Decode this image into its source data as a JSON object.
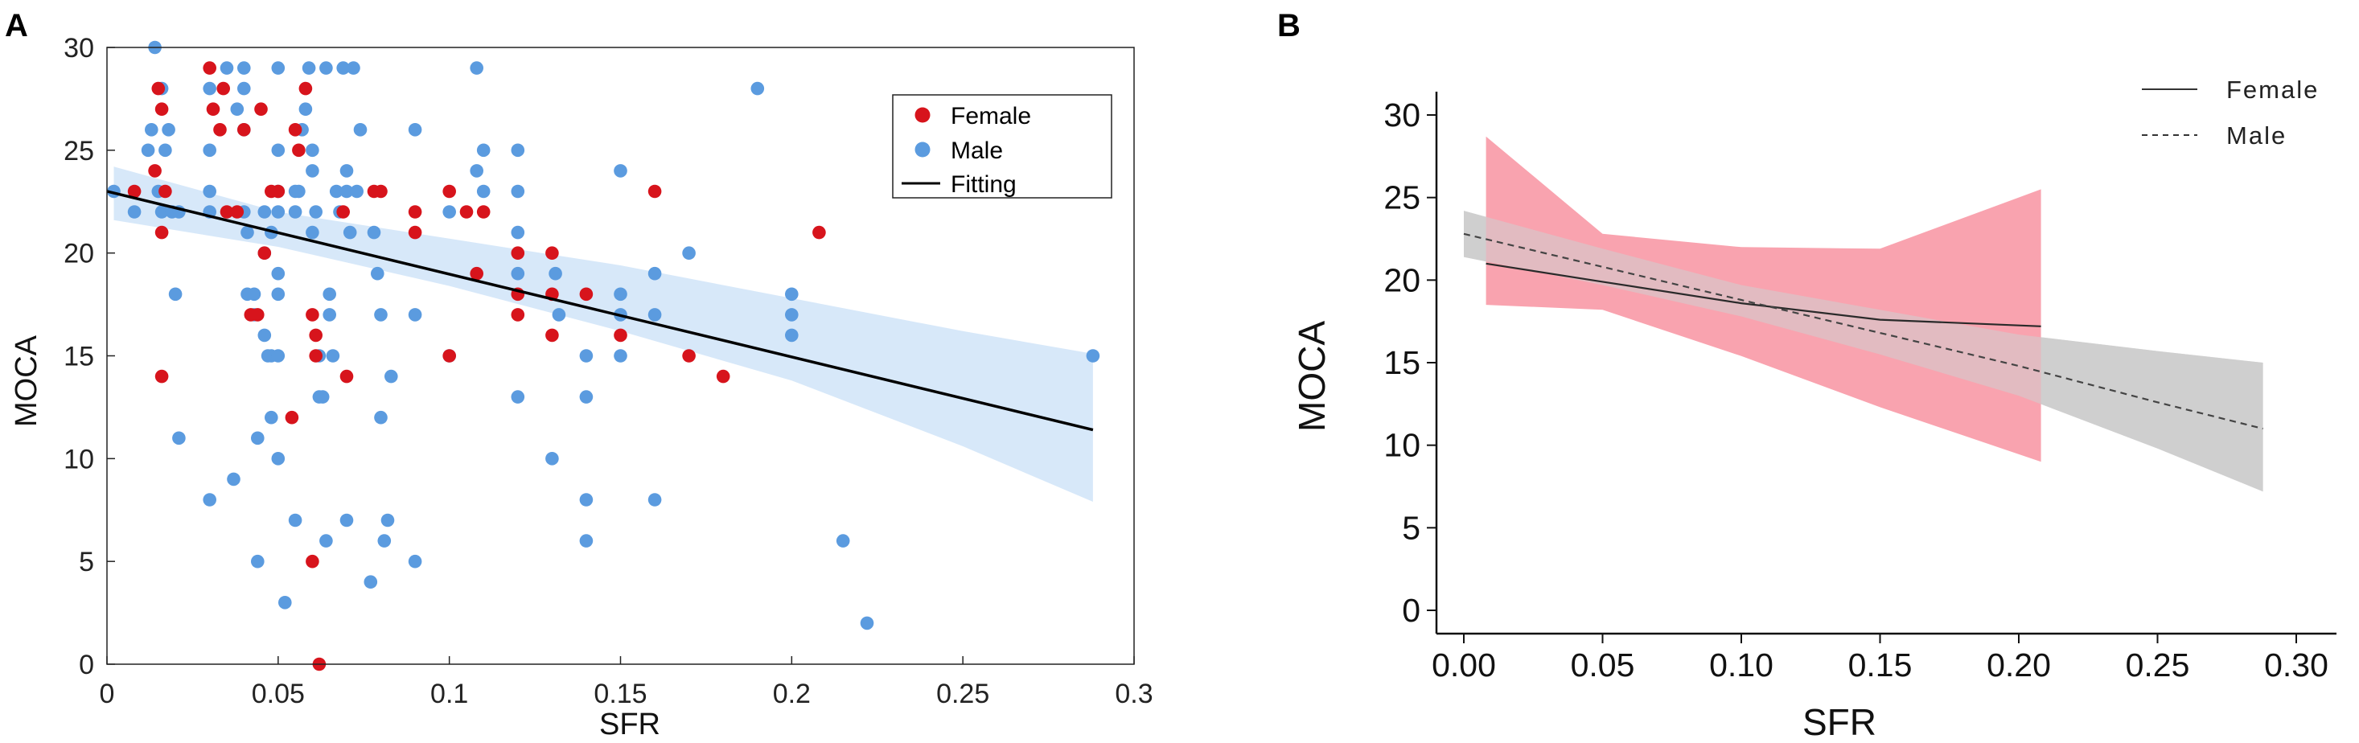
{
  "chart_data": [
    {
      "panel_label": "A",
      "type": "scatter",
      "xlabel": "SFR",
      "ylabel": "MOCA",
      "xlim": [
        0,
        0.3
      ],
      "ylim": [
        0,
        30
      ],
      "xticks": [
        "0",
        "0.05",
        "0.1",
        "0.15",
        "0.2",
        "0.25",
        "0.3"
      ],
      "yticks": [
        "0",
        "5",
        "10",
        "15",
        "20",
        "25",
        "30"
      ],
      "colors": {
        "female": "#d7141c",
        "male": "#5b9bdf",
        "band": "#d3e5f8",
        "fit": "#000000"
      },
      "legend": {
        "position": "top-right",
        "entries": [
          "Female",
          "Male",
          "Fitting"
        ]
      },
      "fit_line": {
        "x": [
          0.0,
          0.288
        ],
        "y": [
          23.0,
          11.4
        ]
      },
      "confidence_band": {
        "x": [
          0.002,
          0.05,
          0.1,
          0.15,
          0.2,
          0.25,
          0.288
        ],
        "upper": [
          24.2,
          22.0,
          20.7,
          19.4,
          17.8,
          16.2,
          15.1
        ],
        "lower": [
          21.6,
          20.3,
          18.4,
          16.2,
          13.8,
          10.6,
          7.9
        ]
      },
      "series": [
        {
          "name": "Male",
          "points": [
            [
              0.002,
              23
            ],
            [
              0.008,
              22
            ],
            [
              0.012,
              25
            ],
            [
              0.013,
              26
            ],
            [
              0.014,
              30
            ],
            [
              0.015,
              23
            ],
            [
              0.016,
              28
            ],
            [
              0.016,
              22
            ],
            [
              0.017,
              25
            ],
            [
              0.018,
              26
            ],
            [
              0.019,
              22
            ],
            [
              0.021,
              22
            ],
            [
              0.02,
              18
            ],
            [
              0.021,
              11
            ],
            [
              0.03,
              28
            ],
            [
              0.03,
              25
            ],
            [
              0.03,
              23
            ],
            [
              0.03,
              22
            ],
            [
              0.03,
              8
            ],
            [
              0.035,
              29
            ],
            [
              0.037,
              9
            ],
            [
              0.038,
              27
            ],
            [
              0.04,
              29
            ],
            [
              0.04,
              28
            ],
            [
              0.04,
              26
            ],
            [
              0.04,
              22
            ],
            [
              0.041,
              21
            ],
            [
              0.041,
              18
            ],
            [
              0.043,
              18
            ],
            [
              0.043,
              17
            ],
            [
              0.044,
              11
            ],
            [
              0.044,
              5
            ],
            [
              0.046,
              22
            ],
            [
              0.046,
              20
            ],
            [
              0.046,
              16
            ],
            [
              0.047,
              15
            ],
            [
              0.048,
              15
            ],
            [
              0.048,
              12
            ],
            [
              0.048,
              21
            ],
            [
              0.05,
              29
            ],
            [
              0.05,
              25
            ],
            [
              0.05,
              23
            ],
            [
              0.05,
              22
            ],
            [
              0.05,
              19
            ],
            [
              0.05,
              18
            ],
            [
              0.05,
              15
            ],
            [
              0.05,
              10
            ],
            [
              0.052,
              3
            ],
            [
              0.055,
              23
            ],
            [
              0.055,
              22
            ],
            [
              0.055,
              7
            ],
            [
              0.056,
              23
            ],
            [
              0.057,
              26
            ],
            [
              0.058,
              27
            ],
            [
              0.059,
              29
            ],
            [
              0.06,
              25
            ],
            [
              0.06,
              24
            ],
            [
              0.06,
              21
            ],
            [
              0.061,
              22
            ],
            [
              0.062,
              13
            ],
            [
              0.062,
              15
            ],
            [
              0.063,
              13
            ],
            [
              0.064,
              6
            ],
            [
              0.064,
              29
            ],
            [
              0.065,
              18
            ],
            [
              0.065,
              17
            ],
            [
              0.066,
              15
            ],
            [
              0.067,
              23
            ],
            [
              0.068,
              22
            ],
            [
              0.069,
              29
            ],
            [
              0.07,
              23
            ],
            [
              0.07,
              24
            ],
            [
              0.071,
              21
            ],
            [
              0.072,
              29
            ],
            [
              0.073,
              23
            ],
            [
              0.074,
              26
            ],
            [
              0.07,
              7
            ],
            [
              0.077,
              4
            ],
            [
              0.078,
              21
            ],
            [
              0.079,
              19
            ],
            [
              0.08,
              12
            ],
            [
              0.08,
              17
            ],
            [
              0.081,
              6
            ],
            [
              0.082,
              7
            ],
            [
              0.083,
              14
            ],
            [
              0.09,
              26
            ],
            [
              0.09,
              17
            ],
            [
              0.09,
              5
            ],
            [
              0.1,
              15
            ],
            [
              0.1,
              22
            ],
            [
              0.108,
              29
            ],
            [
              0.108,
              24
            ],
            [
              0.11,
              25
            ],
            [
              0.11,
              23
            ],
            [
              0.12,
              25
            ],
            [
              0.12,
              23
            ],
            [
              0.12,
              21
            ],
            [
              0.12,
              19
            ],
            [
              0.12,
              13
            ],
            [
              0.13,
              10
            ],
            [
              0.131,
              19
            ],
            [
              0.132,
              17
            ],
            [
              0.14,
              15
            ],
            [
              0.14,
              13
            ],
            [
              0.14,
              8
            ],
            [
              0.14,
              6
            ],
            [
              0.15,
              24
            ],
            [
              0.15,
              18
            ],
            [
              0.15,
              17
            ],
            [
              0.15,
              15
            ],
            [
              0.16,
              19
            ],
            [
              0.16,
              17
            ],
            [
              0.16,
              8
            ],
            [
              0.17,
              20
            ],
            [
              0.19,
              28
            ],
            [
              0.2,
              18
            ],
            [
              0.2,
              17
            ],
            [
              0.2,
              16
            ],
            [
              0.215,
              6
            ],
            [
              0.222,
              2
            ],
            [
              0.288,
              15
            ]
          ]
        },
        {
          "name": "Female",
          "points": [
            [
              0.008,
              23
            ],
            [
              0.014,
              24
            ],
            [
              0.015,
              28
            ],
            [
              0.016,
              27
            ],
            [
              0.016,
              21
            ],
            [
              0.016,
              14
            ],
            [
              0.017,
              23
            ],
            [
              0.03,
              29
            ],
            [
              0.031,
              27
            ],
            [
              0.033,
              26
            ],
            [
              0.034,
              28
            ],
            [
              0.035,
              22
            ],
            [
              0.038,
              22
            ],
            [
              0.04,
              26
            ],
            [
              0.042,
              17
            ],
            [
              0.044,
              17
            ],
            [
              0.045,
              27
            ],
            [
              0.046,
              20
            ],
            [
              0.048,
              23
            ],
            [
              0.05,
              23
            ],
            [
              0.054,
              12
            ],
            [
              0.055,
              26
            ],
            [
              0.056,
              25
            ],
            [
              0.058,
              28
            ],
            [
              0.06,
              17
            ],
            [
              0.06,
              5
            ],
            [
              0.061,
              15
            ],
            [
              0.061,
              16
            ],
            [
              0.062,
              0
            ],
            [
              0.069,
              22
            ],
            [
              0.07,
              14
            ],
            [
              0.078,
              23
            ],
            [
              0.08,
              23
            ],
            [
              0.09,
              22
            ],
            [
              0.09,
              21
            ],
            [
              0.1,
              15
            ],
            [
              0.1,
              23
            ],
            [
              0.105,
              22
            ],
            [
              0.108,
              19
            ],
            [
              0.11,
              22
            ],
            [
              0.12,
              20
            ],
            [
              0.12,
              18
            ],
            [
              0.12,
              17
            ],
            [
              0.13,
              20
            ],
            [
              0.13,
              18
            ],
            [
              0.13,
              16
            ],
            [
              0.14,
              18
            ],
            [
              0.15,
              16
            ],
            [
              0.16,
              23
            ],
            [
              0.17,
              15
            ],
            [
              0.18,
              14
            ],
            [
              0.208,
              21
            ]
          ]
        }
      ]
    },
    {
      "panel_label": "B",
      "type": "line",
      "xlabel": "SFR",
      "ylabel": "MOCA",
      "xlim": [
        -0.02,
        0.31
      ],
      "ylim": [
        -1,
        31
      ],
      "xticks": [
        "0.00",
        "0.05",
        "0.10",
        "0.15",
        "0.20",
        "0.25",
        "0.30"
      ],
      "yticks": [
        "0",
        "5",
        "10",
        "15",
        "20",
        "25",
        "30"
      ],
      "colors": {
        "female_band": "#f9a3af",
        "male_band": "#cfcfcf",
        "female_line": "#2a2a2a",
        "male_line": "#444444"
      },
      "legend": {
        "position": "top-right",
        "entries": [
          "Female",
          "Male"
        ]
      },
      "series": [
        {
          "name": "Female",
          "style": "solid",
          "x": [
            0.008,
            0.05,
            0.1,
            0.15,
            0.208
          ],
          "y": [
            21.0,
            19.9,
            18.6,
            17.6,
            17.2
          ],
          "band_upper": [
            28.7,
            22.8,
            22.0,
            21.9,
            25.5
          ],
          "band_lower": [
            18.5,
            18.2,
            15.4,
            12.3,
            9.0
          ]
        },
        {
          "name": "Male",
          "style": "dashed",
          "x": [
            0.0,
            0.05,
            0.1,
            0.15,
            0.2,
            0.25,
            0.288
          ],
          "y": [
            22.8,
            20.8,
            18.8,
            16.8,
            14.8,
            12.6,
            11.0
          ],
          "band_upper": [
            24.2,
            21.9,
            19.7,
            18.2,
            16.7,
            15.7,
            15.0
          ],
          "band_lower": [
            21.4,
            19.7,
            17.8,
            15.5,
            13.0,
            9.8,
            7.2
          ]
        }
      ]
    }
  ]
}
